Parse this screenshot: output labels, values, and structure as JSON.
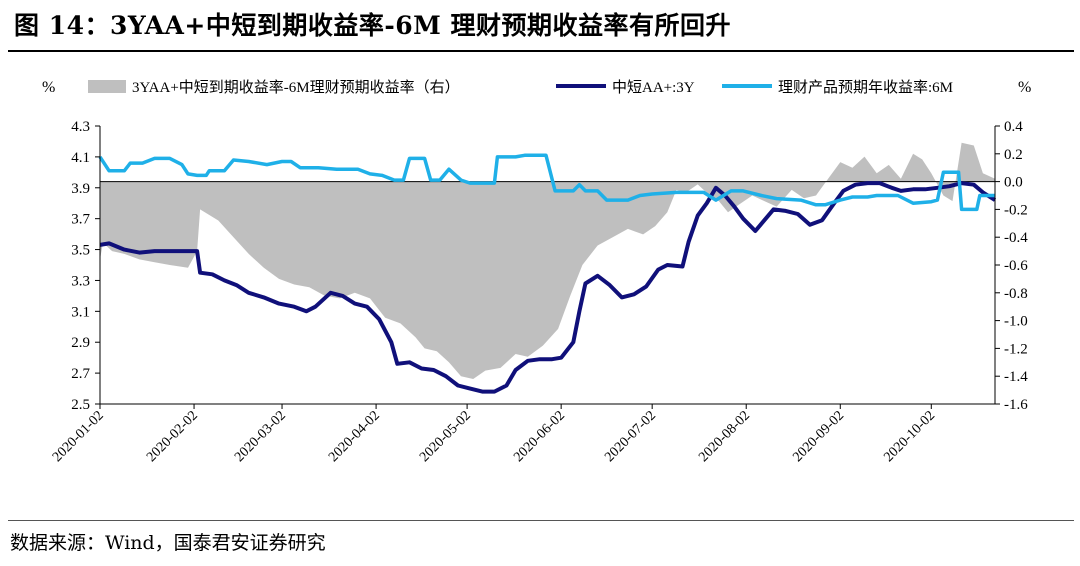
{
  "header": {
    "title": "图 14：3YAA+中短到期收益率-6M 理财预期收益率有所回升"
  },
  "footer": {
    "source": "数据来源：Wind，国泰君安证券研究"
  },
  "chart_data": {
    "type": "line",
    "title": "3YAA+中短到期收益率-6M 理财预期收益率有所回升",
    "left_axis_unit": "%",
    "right_axis_unit": "%",
    "ylim_left": [
      2.5,
      4.3
    ],
    "ylim_right": [
      -1.6,
      0.4
    ],
    "yticks_left": [
      "4.3",
      "4.1",
      "3.9",
      "3.7",
      "3.5",
      "3.3",
      "3.1",
      "2.9",
      "2.7",
      "2.5"
    ],
    "yticks_right": [
      "0.4",
      "0.2",
      "0.0",
      "-0.2",
      "-0.4",
      "-0.6",
      "-0.8",
      "-1.0",
      "-1.2",
      "-1.4",
      "-1.6"
    ],
    "x_start": "2020-01-02",
    "x_end": "2020-10-23",
    "x_ticks": [
      "2020-01-02",
      "2020-02-02",
      "2020-03-02",
      "2020-04-02",
      "2020-05-02",
      "2020-06-02",
      "2020-07-02",
      "2020-08-02",
      "2020-09-02",
      "2020-10-02"
    ],
    "grid": false,
    "legend_position": "top",
    "series": [
      {
        "name": "3YAA+中短到期收益率-6M理财预期收益率（右）",
        "axis": "right",
        "kind": "area",
        "color": "#bfbfbf",
        "points": [
          [
            "2020-01-02",
            -0.56
          ],
          [
            "2020-01-03",
            -0.44
          ],
          [
            "2020-01-06",
            -0.5
          ],
          [
            "2020-01-10",
            -0.52
          ],
          [
            "2020-01-15",
            -0.56
          ],
          [
            "2020-01-20",
            -0.58
          ],
          [
            "2020-01-25",
            -0.6
          ],
          [
            "2020-01-31",
            -0.62
          ],
          [
            "2020-02-03",
            -0.5
          ],
          [
            "2020-02-04",
            -0.2
          ],
          [
            "2020-02-10",
            -0.28
          ],
          [
            "2020-02-15",
            -0.4
          ],
          [
            "2020-02-20",
            -0.52
          ],
          [
            "2020-02-25",
            -0.62
          ],
          [
            "2020-03-01",
            -0.7
          ],
          [
            "2020-03-06",
            -0.74
          ],
          [
            "2020-03-11",
            -0.76
          ],
          [
            "2020-03-16",
            -0.82
          ],
          [
            "2020-03-21",
            -0.84
          ],
          [
            "2020-03-26",
            -0.8
          ],
          [
            "2020-03-31",
            -0.84
          ],
          [
            "2020-04-05",
            -0.98
          ],
          [
            "2020-04-10",
            -1.02
          ],
          [
            "2020-04-15",
            -1.12
          ],
          [
            "2020-04-18",
            -1.2
          ],
          [
            "2020-04-22",
            -1.22
          ],
          [
            "2020-04-26",
            -1.3
          ],
          [
            "2020-04-30",
            -1.4
          ],
          [
            "2020-05-04",
            -1.42
          ],
          [
            "2020-05-08",
            -1.36
          ],
          [
            "2020-05-13",
            -1.34
          ],
          [
            "2020-05-18",
            -1.24
          ],
          [
            "2020-05-22",
            -1.26
          ],
          [
            "2020-05-27",
            -1.18
          ],
          [
            "2020-06-01",
            -1.06
          ],
          [
            "2020-06-05",
            -0.82
          ],
          [
            "2020-06-09",
            -0.6
          ],
          [
            "2020-06-14",
            -0.46
          ],
          [
            "2020-06-19",
            -0.4
          ],
          [
            "2020-06-24",
            -0.34
          ],
          [
            "2020-06-29",
            -0.38
          ],
          [
            "2020-07-03",
            -0.32
          ],
          [
            "2020-07-07",
            -0.22
          ],
          [
            "2020-07-10",
            -0.06
          ],
          [
            "2020-07-13",
            -0.08
          ],
          [
            "2020-07-17",
            -0.02
          ],
          [
            "2020-07-21",
            -0.1
          ],
          [
            "2020-07-24",
            -0.14
          ],
          [
            "2020-07-27",
            -0.22
          ],
          [
            "2020-07-31",
            -0.16
          ],
          [
            "2020-08-04",
            -0.1
          ],
          [
            "2020-08-08",
            -0.14
          ],
          [
            "2020-08-12",
            -0.18
          ],
          [
            "2020-08-17",
            -0.06
          ],
          [
            "2020-08-21",
            -0.12
          ],
          [
            "2020-08-25",
            -0.1
          ],
          [
            "2020-08-29",
            0.02
          ],
          [
            "2020-09-02",
            0.14
          ],
          [
            "2020-09-06",
            0.1
          ],
          [
            "2020-09-10",
            0.18
          ],
          [
            "2020-09-14",
            0.06
          ],
          [
            "2020-09-18",
            0.12
          ],
          [
            "2020-09-22",
            0.02
          ],
          [
            "2020-09-26",
            0.2
          ],
          [
            "2020-09-29",
            0.16
          ],
          [
            "2020-10-02",
            0.06
          ],
          [
            "2020-10-06",
            -0.1
          ],
          [
            "2020-10-09",
            -0.14
          ],
          [
            "2020-10-12",
            0.28
          ],
          [
            "2020-10-16",
            0.26
          ],
          [
            "2020-10-19",
            0.06
          ],
          [
            "2020-10-23",
            0.02
          ]
        ]
      },
      {
        "name": "中短AA+:3Y",
        "axis": "left",
        "kind": "line",
        "color": "#10107a",
        "points": [
          [
            "2020-01-02",
            3.53
          ],
          [
            "2020-01-05",
            3.54
          ],
          [
            "2020-01-10",
            3.5
          ],
          [
            "2020-01-15",
            3.48
          ],
          [
            "2020-01-20",
            3.49
          ],
          [
            "2020-01-24",
            3.49
          ],
          [
            "2020-02-03",
            3.49
          ],
          [
            "2020-02-04",
            3.35
          ],
          [
            "2020-02-08",
            3.34
          ],
          [
            "2020-02-12",
            3.3
          ],
          [
            "2020-02-16",
            3.27
          ],
          [
            "2020-02-20",
            3.22
          ],
          [
            "2020-02-25",
            3.19
          ],
          [
            "2020-03-01",
            3.15
          ],
          [
            "2020-03-06",
            3.13
          ],
          [
            "2020-03-10",
            3.1
          ],
          [
            "2020-03-13",
            3.13
          ],
          [
            "2020-03-18",
            3.22
          ],
          [
            "2020-03-22",
            3.2
          ],
          [
            "2020-03-26",
            3.15
          ],
          [
            "2020-03-30",
            3.13
          ],
          [
            "2020-04-03",
            3.05
          ],
          [
            "2020-04-07",
            2.9
          ],
          [
            "2020-04-09",
            2.76
          ],
          [
            "2020-04-13",
            2.77
          ],
          [
            "2020-04-17",
            2.73
          ],
          [
            "2020-04-21",
            2.72
          ],
          [
            "2020-04-25",
            2.68
          ],
          [
            "2020-04-29",
            2.62
          ],
          [
            "2020-05-03",
            2.6
          ],
          [
            "2020-05-07",
            2.58
          ],
          [
            "2020-05-11",
            2.58
          ],
          [
            "2020-05-15",
            2.62
          ],
          [
            "2020-05-18",
            2.72
          ],
          [
            "2020-05-22",
            2.78
          ],
          [
            "2020-05-26",
            2.79
          ],
          [
            "2020-05-30",
            2.79
          ],
          [
            "2020-06-02",
            2.8
          ],
          [
            "2020-06-06",
            2.9
          ],
          [
            "2020-06-08",
            3.1
          ],
          [
            "2020-06-10",
            3.28
          ],
          [
            "2020-06-14",
            3.33
          ],
          [
            "2020-06-18",
            3.27
          ],
          [
            "2020-06-22",
            3.19
          ],
          [
            "2020-06-26",
            3.21
          ],
          [
            "2020-06-30",
            3.26
          ],
          [
            "2020-07-04",
            3.37
          ],
          [
            "2020-07-07",
            3.4
          ],
          [
            "2020-07-12",
            3.39
          ],
          [
            "2020-07-14",
            3.55
          ],
          [
            "2020-07-17",
            3.72
          ],
          [
            "2020-07-20",
            3.8
          ],
          [
            "2020-07-23",
            3.9
          ],
          [
            "2020-07-26",
            3.85
          ],
          [
            "2020-07-29",
            3.78
          ],
          [
            "2020-08-01",
            3.7
          ],
          [
            "2020-08-05",
            3.62
          ],
          [
            "2020-08-08",
            3.69
          ],
          [
            "2020-08-11",
            3.76
          ],
          [
            "2020-08-15",
            3.75
          ],
          [
            "2020-08-19",
            3.73
          ],
          [
            "2020-08-23",
            3.66
          ],
          [
            "2020-08-27",
            3.69
          ],
          [
            "2020-08-31",
            3.8
          ],
          [
            "2020-09-03",
            3.88
          ],
          [
            "2020-09-07",
            3.92
          ],
          [
            "2020-09-11",
            3.93
          ],
          [
            "2020-09-15",
            3.93
          ],
          [
            "2020-09-19",
            3.9
          ],
          [
            "2020-09-22",
            3.88
          ],
          [
            "2020-09-26",
            3.89
          ],
          [
            "2020-09-30",
            3.89
          ],
          [
            "2020-10-04",
            3.9
          ],
          [
            "2020-10-08",
            3.91
          ],
          [
            "2020-10-12",
            3.93
          ],
          [
            "2020-10-16",
            3.92
          ],
          [
            "2020-10-19",
            3.87
          ],
          [
            "2020-10-23",
            3.82
          ]
        ]
      },
      {
        "name": "理财产品预期年收益率:6M",
        "axis": "left",
        "kind": "line",
        "color": "#1fb0e8",
        "points": [
          [
            "2020-01-02",
            4.1
          ],
          [
            "2020-01-05",
            4.01
          ],
          [
            "2020-01-10",
            4.01
          ],
          [
            "2020-01-12",
            4.06
          ],
          [
            "2020-01-16",
            4.06
          ],
          [
            "2020-01-20",
            4.09
          ],
          [
            "2020-01-25",
            4.09
          ],
          [
            "2020-01-29",
            4.05
          ],
          [
            "2020-01-31",
            3.99
          ],
          [
            "2020-02-03",
            3.98
          ],
          [
            "2020-02-06",
            3.98
          ],
          [
            "2020-02-07",
            4.01
          ],
          [
            "2020-02-12",
            4.01
          ],
          [
            "2020-02-15",
            4.08
          ],
          [
            "2020-02-20",
            4.07
          ],
          [
            "2020-02-26",
            4.05
          ],
          [
            "2020-03-02",
            4.07
          ],
          [
            "2020-03-05",
            4.07
          ],
          [
            "2020-03-08",
            4.03
          ],
          [
            "2020-03-14",
            4.03
          ],
          [
            "2020-03-20",
            4.02
          ],
          [
            "2020-03-27",
            4.02
          ],
          [
            "2020-03-31",
            3.99
          ],
          [
            "2020-04-04",
            3.98
          ],
          [
            "2020-04-08",
            3.95
          ],
          [
            "2020-04-11",
            3.95
          ],
          [
            "2020-04-13",
            4.09
          ],
          [
            "2020-04-18",
            4.09
          ],
          [
            "2020-04-20",
            3.95
          ],
          [
            "2020-04-23",
            3.95
          ],
          [
            "2020-04-26",
            4.02
          ],
          [
            "2020-04-30",
            3.95
          ],
          [
            "2020-05-03",
            3.93
          ],
          [
            "2020-05-11",
            3.93
          ],
          [
            "2020-05-12",
            4.1
          ],
          [
            "2020-05-18",
            4.1
          ],
          [
            "2020-05-21",
            4.11
          ],
          [
            "2020-05-28",
            4.11
          ],
          [
            "2020-05-31",
            3.88
          ],
          [
            "2020-06-06",
            3.88
          ],
          [
            "2020-06-08",
            3.92
          ],
          [
            "2020-06-10",
            3.88
          ],
          [
            "2020-06-14",
            3.88
          ],
          [
            "2020-06-17",
            3.82
          ],
          [
            "2020-06-24",
            3.82
          ],
          [
            "2020-06-28",
            3.85
          ],
          [
            "2020-07-02",
            3.86
          ],
          [
            "2020-07-10",
            3.87
          ],
          [
            "2020-07-16",
            3.87
          ],
          [
            "2020-07-19",
            3.87
          ],
          [
            "2020-07-23",
            3.82
          ],
          [
            "2020-07-28",
            3.88
          ],
          [
            "2020-08-01",
            3.88
          ],
          [
            "2020-08-07",
            3.85
          ],
          [
            "2020-08-12",
            3.83
          ],
          [
            "2020-08-20",
            3.82
          ],
          [
            "2020-08-25",
            3.79
          ],
          [
            "2020-08-28",
            3.79
          ],
          [
            "2020-09-02",
            3.82
          ],
          [
            "2020-09-06",
            3.84
          ],
          [
            "2020-09-11",
            3.84
          ],
          [
            "2020-09-14",
            3.85
          ],
          [
            "2020-09-21",
            3.85
          ],
          [
            "2020-09-26",
            3.8
          ],
          [
            "2020-10-02",
            3.81
          ],
          [
            "2020-10-04",
            3.82
          ],
          [
            "2020-10-06",
            4.0
          ],
          [
            "2020-10-11",
            4.0
          ],
          [
            "2020-10-12",
            3.76
          ],
          [
            "2020-10-17",
            3.76
          ],
          [
            "2020-10-18",
            3.85
          ],
          [
            "2020-10-23",
            3.85
          ]
        ]
      }
    ]
  }
}
